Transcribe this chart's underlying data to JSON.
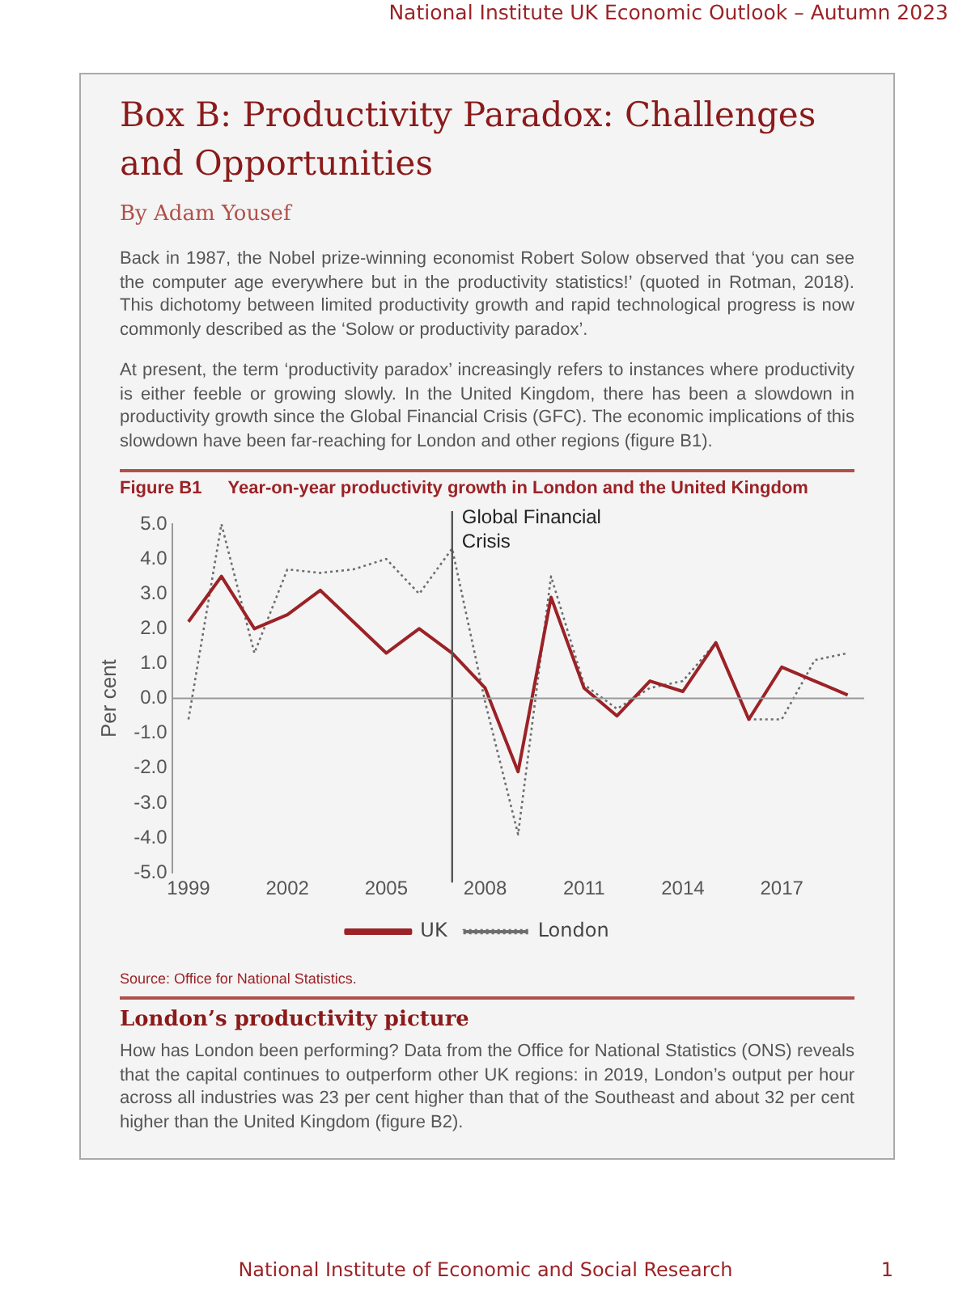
{
  "chart_data": {
    "type": "line",
    "title": "Year-on-year productivity growth in London and the United Kingdom",
    "ylabel": "Per cent",
    "x": [
      1999,
      2000,
      2001,
      2002,
      2003,
      2004,
      2005,
      2006,
      2007,
      2008,
      2009,
      2010,
      2011,
      2012,
      2013,
      2014,
      2015,
      2016,
      2017,
      2018,
      2019
    ],
    "series": [
      {
        "name": "UK",
        "color": "#9b2226",
        "line_style": "solid",
        "values": [
          2.2,
          3.5,
          2.0,
          2.4,
          3.1,
          2.2,
          1.3,
          2.0,
          1.3,
          0.3,
          -2.1,
          2.9,
          0.3,
          -0.5,
          0.5,
          0.2,
          1.6,
          -0.6,
          0.9,
          0.5,
          0.1
        ]
      },
      {
        "name": "London",
        "color": "#6e6e6e",
        "line_style": "dotted",
        "values": [
          -0.6,
          5.0,
          1.3,
          3.7,
          3.6,
          3.7,
          4.0,
          3.0,
          4.3,
          -0.1,
          -3.9,
          3.5,
          0.4,
          -0.3,
          0.3,
          0.5,
          1.6,
          -0.6,
          -0.6,
          1.1,
          1.3
        ]
      }
    ],
    "xlim": [
      1998.5,
      2019.5
    ],
    "xticks": [
      1999,
      2002,
      2005,
      2008,
      2011,
      2014,
      2017
    ],
    "ylim": [
      -5,
      5
    ],
    "yticks": [
      {
        "value": 5,
        "label": "5.0"
      },
      {
        "value": 4,
        "label": "4.0"
      },
      {
        "value": 3,
        "label": "3.0"
      },
      {
        "value": 2,
        "label": "2.0"
      },
      {
        "value": 1,
        "label": "1.0"
      },
      {
        "value": 0,
        "label": "0.0"
      },
      {
        "value": -1,
        "label": "-1.0"
      },
      {
        "value": -2,
        "label": "-2.0"
      },
      {
        "value": -3,
        "label": "-3.0"
      },
      {
        "value": -4,
        "label": "-4.0"
      },
      {
        "value": -5,
        "label": "-5.0"
      }
    ],
    "ref_lines": [
      {
        "axis": "x",
        "value": 2007,
        "label": "Global Financial Crisis",
        "color": "#555555"
      },
      {
        "axis": "y",
        "value": 0,
        "color": "#999999"
      }
    ],
    "grid": false,
    "legend": "bottom",
    "marker": "none",
    "annotations": [
      "National Institute UK Economic Outlook – Autumn 2023",
      "Box B: Productivity Paradox: Challenges and Opportunities",
      "By Adam Yousef",
      "Back in 1987, the Nobel prize-winning economist Robert Solow observed that ‘you can see the computer age everywhere but in the productivity statistics!’ (quoted in Rotman, 2018). This dichotomy between limited productivity growth and rapid technological progress is now commonly described as the ‘Solow or productivity paradox’.",
      "At present, the term ‘productivity paradox’ increasingly refers to instances where productivity is either feeble or growing slowly. In the United Kingdom, there has been a slowdown in productivity growth since the Global Financial Crisis (GFC). The economic implications of this slowdown have been far-reaching for London and other regions (figure B1).",
      "Figure B1",
      "Source: Office for National Statistics.",
      "London’s productivity picture",
      "How has London been performing? Data from the Office for National Statistics (ONS) reveals that the capital continues to outperform other UK regions: in 2019, London’s output per hour across all industries was 23 per cent higher than that of the Southeast and about 32 per cent higher than the United Kingdom (figure B2).",
      "National Institute of Economic and Social Research",
      "1"
    ]
  }
}
